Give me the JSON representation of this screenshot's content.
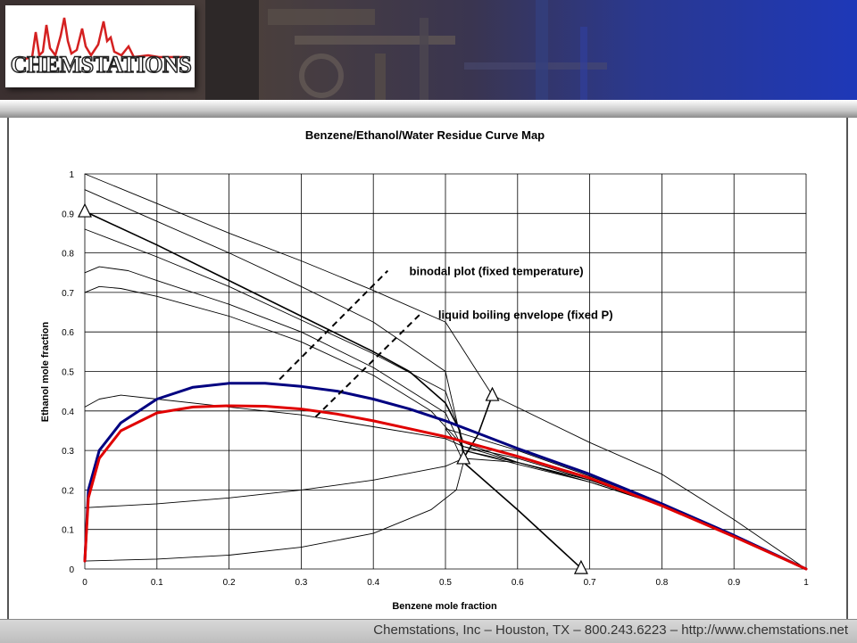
{
  "header": {
    "logo_text": "CHEMSTATIONS",
    "logo_graph_color": "#d42020"
  },
  "footer": {
    "text": "Chemstations, Inc – Houston, TX – 800.243.6223 – http://www.chemstations.net"
  },
  "chart_data": {
    "type": "line",
    "title": "Benzene/Ethanol/Water Residue Curve Map",
    "xlabel": "Benzene mole fraction",
    "ylabel": "Ethanol mole fraction",
    "xlim": [
      0,
      1
    ],
    "ylim": [
      0,
      1
    ],
    "xticks": [
      "0",
      "0.1",
      "0.2",
      "0.3",
      "0.4",
      "0.5",
      "0.6",
      "0.7",
      "0.8",
      "0.9",
      "1"
    ],
    "yticks": [
      "0",
      "0.1",
      "0.2",
      "0.3",
      "0.4",
      "0.5",
      "0.6",
      "0.7",
      "0.8",
      "0.9",
      "1"
    ],
    "grid": true,
    "annotations": [
      {
        "text": "binodal plot (fixed temperature)",
        "x": 0.44,
        "y": 0.755,
        "line": [
          [
            0.27,
            0.48
          ],
          [
            0.42,
            0.755
          ]
        ]
      },
      {
        "text": "liquid boiling envelope (fixed P)",
        "x": 0.48,
        "y": 0.645,
        "line": [
          [
            0.32,
            0.385
          ],
          [
            0.465,
            0.645
          ]
        ]
      }
    ],
    "series": [
      {
        "color": "#000080",
        "width": 3,
        "points": [
          [
            0,
            0.02
          ],
          [
            0.005,
            0.2
          ],
          [
            0.02,
            0.3
          ],
          [
            0.05,
            0.37
          ],
          [
            0.1,
            0.43
          ],
          [
            0.15,
            0.46
          ],
          [
            0.2,
            0.47
          ],
          [
            0.25,
            0.47
          ],
          [
            0.3,
            0.462
          ],
          [
            0.35,
            0.45
          ],
          [
            0.4,
            0.43
          ],
          [
            0.45,
            0.405
          ],
          [
            0.5,
            0.375
          ],
          [
            0.55,
            0.34
          ],
          [
            0.6,
            0.305
          ],
          [
            0.7,
            0.24
          ],
          [
            0.8,
            0.165
          ],
          [
            0.9,
            0.085
          ],
          [
            1,
            0
          ]
        ]
      },
      {
        "color": "#e00000",
        "width": 3,
        "points": [
          [
            0,
            0.02
          ],
          [
            0.005,
            0.18
          ],
          [
            0.02,
            0.28
          ],
          [
            0.05,
            0.35
          ],
          [
            0.1,
            0.395
          ],
          [
            0.15,
            0.41
          ],
          [
            0.2,
            0.413
          ],
          [
            0.25,
            0.412
          ],
          [
            0.3,
            0.405
          ],
          [
            0.35,
            0.392
          ],
          [
            0.4,
            0.375
          ],
          [
            0.45,
            0.355
          ],
          [
            0.5,
            0.335
          ],
          [
            0.55,
            0.31
          ],
          [
            0.6,
            0.285
          ],
          [
            0.7,
            0.23
          ],
          [
            0.8,
            0.16
          ],
          [
            0.9,
            0.082
          ],
          [
            1,
            0
          ]
        ]
      },
      {
        "color": "#000000",
        "width": 1.6,
        "points": [
          [
            0,
            0.905
          ],
          [
            0.1,
            0.82
          ],
          [
            0.2,
            0.73
          ],
          [
            0.3,
            0.64
          ],
          [
            0.4,
            0.55
          ],
          [
            0.45,
            0.5
          ],
          [
            0.5,
            0.42
          ],
          [
            0.52,
            0.35
          ],
          [
            0.525,
            0.285
          ]
        ]
      },
      {
        "color": "#000000",
        "width": 1.6,
        "points": [
          [
            0.525,
            0.28
          ],
          [
            0.545,
            0.34
          ],
          [
            0.565,
            0.44
          ]
        ]
      },
      {
        "color": "#000000",
        "width": 1.6,
        "points": [
          [
            0.525,
            0.27
          ],
          [
            0.6,
            0.15
          ],
          [
            0.688,
            0.002
          ]
        ]
      },
      {
        "color": "#000000",
        "width": 0.9,
        "points": [
          [
            0,
            1
          ],
          [
            0.1,
            0.925
          ],
          [
            0.2,
            0.85
          ],
          [
            0.3,
            0.78
          ],
          [
            0.4,
            0.705
          ],
          [
            0.5,
            0.625
          ],
          [
            0.565,
            0.44
          ],
          [
            0.7,
            0.32
          ],
          [
            0.8,
            0.24
          ],
          [
            0.9,
            0.125
          ],
          [
            1,
            0
          ]
        ]
      },
      {
        "color": "#000000",
        "width": 0.9,
        "points": [
          [
            0,
            0.96
          ],
          [
            0.1,
            0.88
          ],
          [
            0.2,
            0.8
          ],
          [
            0.3,
            0.715
          ],
          [
            0.4,
            0.625
          ],
          [
            0.5,
            0.5
          ],
          [
            0.525,
            0.3
          ],
          [
            0.6,
            0.265
          ],
          [
            0.7,
            0.22
          ],
          [
            0.8,
            0.16
          ],
          [
            0.9,
            0.082
          ],
          [
            1,
            0
          ]
        ]
      },
      {
        "color": "#000000",
        "width": 0.9,
        "points": [
          [
            0,
            0.86
          ],
          [
            0.1,
            0.79
          ],
          [
            0.2,
            0.715
          ],
          [
            0.3,
            0.63
          ],
          [
            0.4,
            0.545
          ],
          [
            0.5,
            0.45
          ],
          [
            0.525,
            0.32
          ],
          [
            0.6,
            0.27
          ],
          [
            0.7,
            0.225
          ],
          [
            0.8,
            0.162
          ],
          [
            0.9,
            0.083
          ],
          [
            1,
            0
          ]
        ]
      },
      {
        "color": "#000000",
        "width": 0.9,
        "points": [
          [
            0,
            0.75
          ],
          [
            0.02,
            0.765
          ],
          [
            0.06,
            0.755
          ],
          [
            0.1,
            0.73
          ],
          [
            0.2,
            0.67
          ],
          [
            0.3,
            0.6
          ],
          [
            0.4,
            0.51
          ],
          [
            0.5,
            0.395
          ],
          [
            0.525,
            0.3
          ],
          [
            0.6,
            0.27
          ],
          [
            0.7,
            0.22
          ],
          [
            0.8,
            0.162
          ],
          [
            0.9,
            0.083
          ],
          [
            1,
            0
          ]
        ]
      },
      {
        "color": "#000000",
        "width": 0.9,
        "points": [
          [
            0,
            0.7
          ],
          [
            0.02,
            0.715
          ],
          [
            0.05,
            0.71
          ],
          [
            0.1,
            0.69
          ],
          [
            0.2,
            0.64
          ],
          [
            0.3,
            0.575
          ],
          [
            0.4,
            0.49
          ],
          [
            0.48,
            0.4
          ],
          [
            0.525,
            0.31
          ],
          [
            0.6,
            0.27
          ],
          [
            0.7,
            0.22
          ],
          [
            0.8,
            0.162
          ],
          [
            0.9,
            0.083
          ],
          [
            1,
            0
          ]
        ]
      },
      {
        "color": "#000000",
        "width": 0.9,
        "points": [
          [
            0,
            0.41
          ],
          [
            0.02,
            0.43
          ],
          [
            0.05,
            0.44
          ],
          [
            0.1,
            0.43
          ],
          [
            0.2,
            0.41
          ],
          [
            0.3,
            0.39
          ],
          [
            0.4,
            0.36
          ],
          [
            0.5,
            0.33
          ],
          [
            0.525,
            0.31
          ],
          [
            0.6,
            0.28
          ],
          [
            0.7,
            0.225
          ],
          [
            0.8,
            0.162
          ],
          [
            0.9,
            0.083
          ],
          [
            1,
            0
          ]
        ]
      },
      {
        "color": "#000000",
        "width": 0.9,
        "points": [
          [
            0,
            0.155
          ],
          [
            0.1,
            0.165
          ],
          [
            0.2,
            0.18
          ],
          [
            0.3,
            0.2
          ],
          [
            0.4,
            0.225
          ],
          [
            0.5,
            0.26
          ],
          [
            0.525,
            0.28
          ],
          [
            0.6,
            0.27
          ],
          [
            0.7,
            0.225
          ],
          [
            0.8,
            0.162
          ],
          [
            0.9,
            0.083
          ],
          [
            1,
            0
          ]
        ]
      },
      {
        "color": "#000000",
        "width": 0.9,
        "points": [
          [
            0,
            0.02
          ],
          [
            0.1,
            0.025
          ],
          [
            0.2,
            0.035
          ],
          [
            0.3,
            0.055
          ],
          [
            0.4,
            0.09
          ],
          [
            0.48,
            0.15
          ],
          [
            0.515,
            0.2
          ],
          [
            0.525,
            0.27
          ],
          [
            0.51,
            0.33
          ],
          [
            0.5,
            0.355
          ],
          [
            0.6,
            0.3
          ],
          [
            0.7,
            0.235
          ],
          [
            0.8,
            0.165
          ],
          [
            0.9,
            0.085
          ],
          [
            1,
            0
          ]
        ]
      }
    ],
    "markers": [
      {
        "shape": "triangle",
        "x": 0,
        "y": 0.905
      },
      {
        "shape": "triangle",
        "x": 0.525,
        "y": 0.28
      },
      {
        "shape": "triangle",
        "x": 0.565,
        "y": 0.44
      },
      {
        "shape": "triangle",
        "x": 0.688,
        "y": 0.002
      }
    ]
  }
}
